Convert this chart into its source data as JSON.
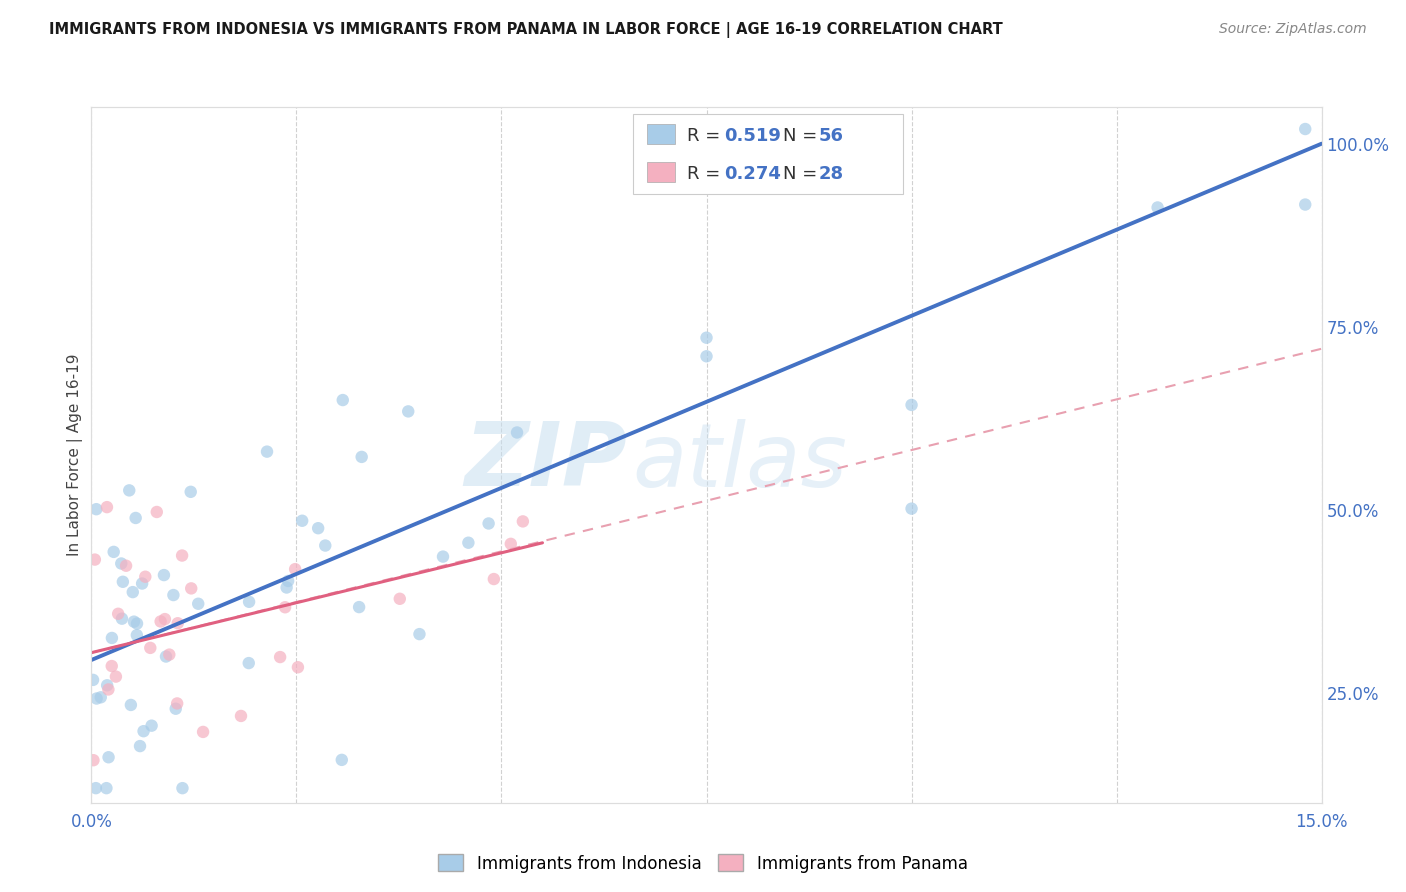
{
  "title": "IMMIGRANTS FROM INDONESIA VS IMMIGRANTS FROM PANAMA IN LABOR FORCE | AGE 16-19 CORRELATION CHART",
  "source": "Source: ZipAtlas.com",
  "ylabel": "In Labor Force | Age 16-19",
  "xlim": [
    0.0,
    0.15
  ],
  "ylim": [
    0.1,
    1.05
  ],
  "xtick_positions": [
    0.0,
    0.025,
    0.05,
    0.075,
    0.1,
    0.125,
    0.15
  ],
  "xticklabels": [
    "0.0%",
    "",
    "",
    "",
    "",
    "",
    "15.0%"
  ],
  "ytick_right_positions": [
    0.25,
    0.5,
    0.75,
    1.0
  ],
  "ytick_right_labels": [
    "25.0%",
    "50.0%",
    "75.0%",
    "100.0%"
  ],
  "legend_r1": "0.519",
  "legend_n1": "56",
  "legend_r2": "0.274",
  "legend_n2": "28",
  "color_indonesia": "#a8cce8",
  "color_panama": "#f4b0c0",
  "color_blue_dark": "#4472c4",
  "color_pink_line": "#e06080",
  "background": "#ffffff",
  "watermark_zip": "ZIP",
  "watermark_atlas": "atlas",
  "indo_trendline_x": [
    0.0,
    0.15
  ],
  "indo_trendline_y": [
    0.295,
    1.0
  ],
  "pan_trendline_x": [
    0.0,
    0.055
  ],
  "pan_trendline_y": [
    0.305,
    0.455
  ],
  "dash_trendline_x": [
    0.0,
    0.15
  ],
  "dash_trendline_y": [
    0.305,
    0.72
  ]
}
